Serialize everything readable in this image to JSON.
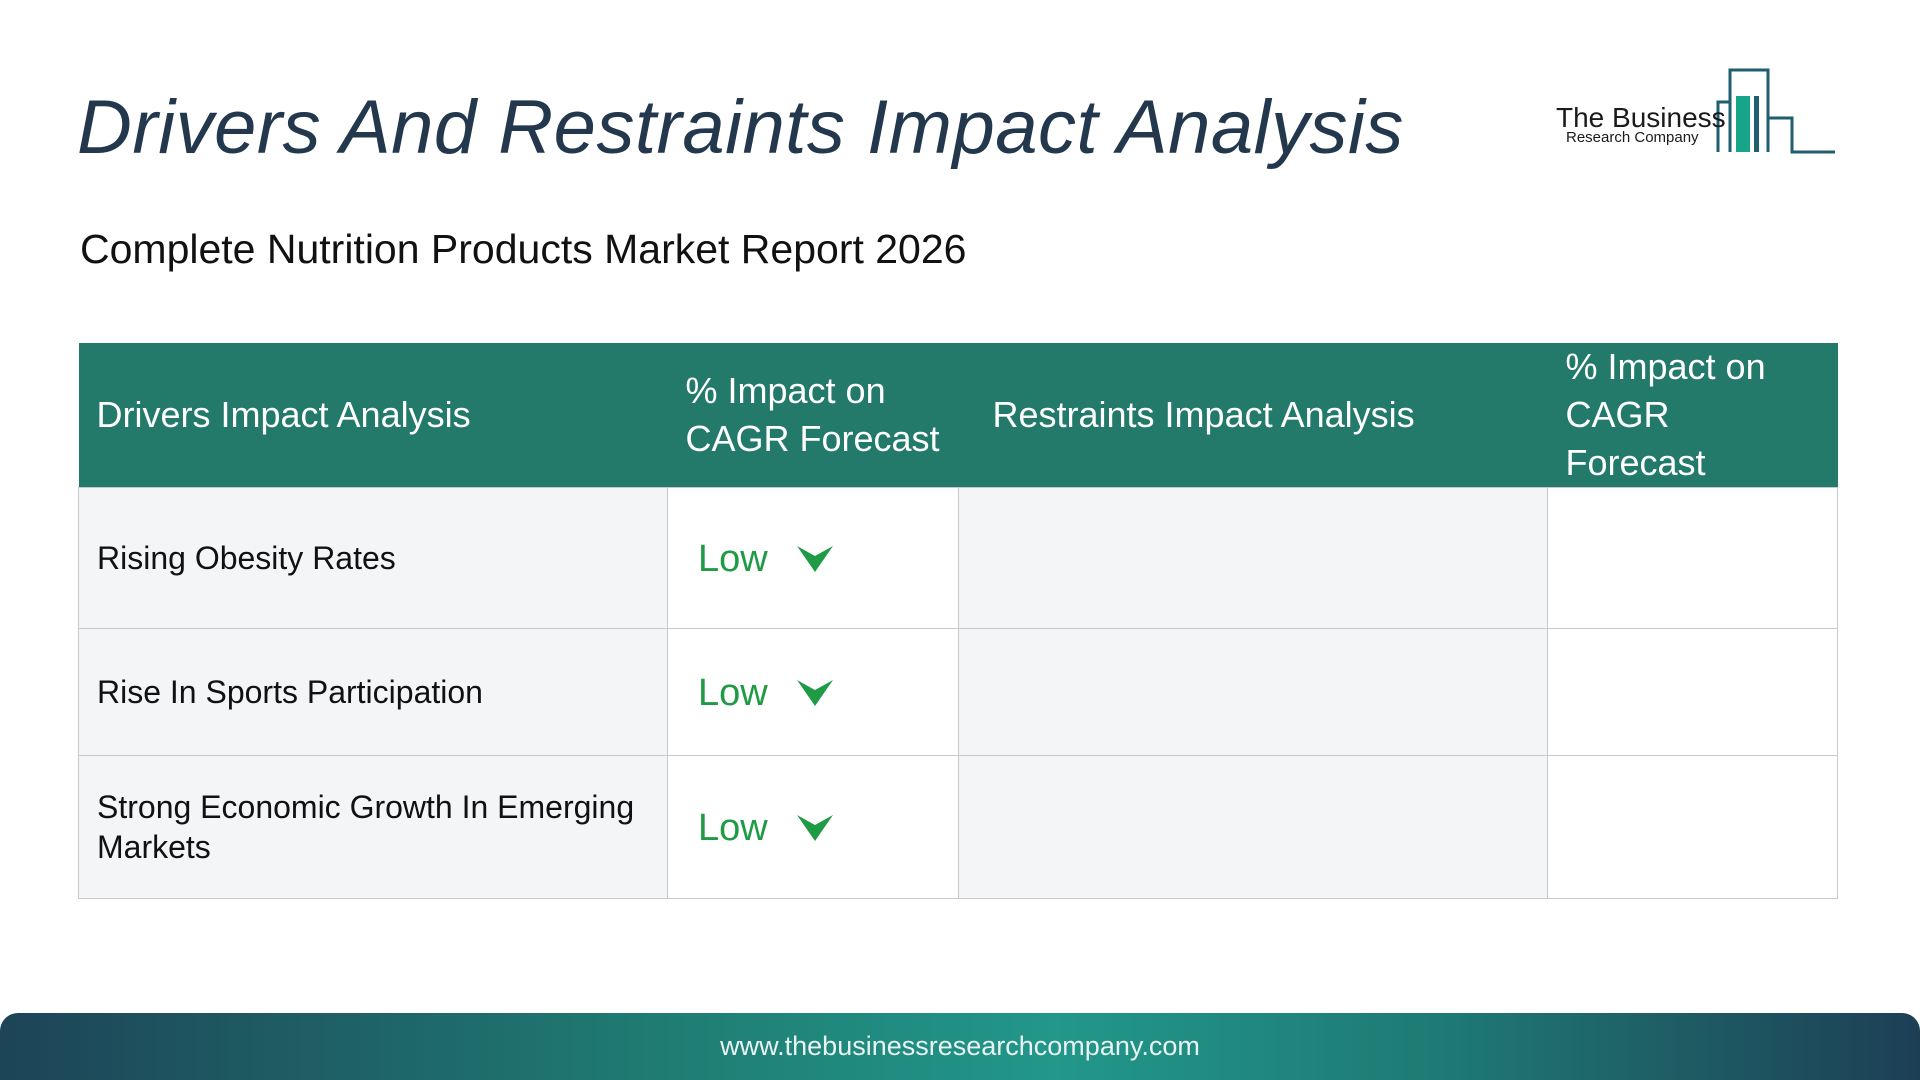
{
  "header": {
    "title": "Drivers And Restraints Impact Analysis",
    "subtitle": "Complete Nutrition Products Market Report 2026"
  },
  "logo": {
    "line1": "The Business",
    "line2": "Research Company",
    "colors": {
      "accent": "#17a58a",
      "dark": "#1f5e6e"
    }
  },
  "table": {
    "headers": [
      "Drivers Impact Analysis",
      "% Impact on CAGR Forecast",
      "Restraints Impact Analysis",
      "% Impact on CAGR Forecast"
    ],
    "rows": [
      {
        "driver": "Rising Obesity Rates",
        "impact": "Low",
        "impact_icon": "chevron-down-icon",
        "restraint": "",
        "restraint_impact": ""
      },
      {
        "driver": "Rise In Sports Participation",
        "impact": "Low",
        "impact_icon": "chevron-down-icon",
        "restraint": "",
        "restraint_impact": ""
      },
      {
        "driver": "Strong Economic Growth In Emerging Markets",
        "impact": "Low",
        "impact_icon": "chevron-down-icon",
        "restraint": "",
        "restraint_impact": ""
      }
    ]
  },
  "colors": {
    "header_bg": "#237a6a",
    "impact_low": "#1f9a45",
    "title": "#23384d"
  },
  "footer": {
    "url": "www.thebusinessresearchcompany.com"
  }
}
